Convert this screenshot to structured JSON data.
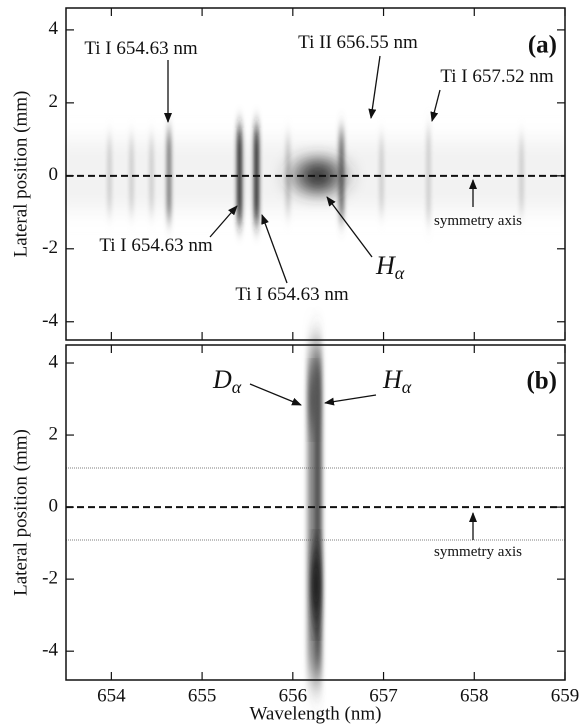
{
  "chart_data": [
    {
      "type": "image",
      "panel_label": "(a)",
      "ylabel": "Lateral position (mm)",
      "xlim": [
        653.5,
        659.0
      ],
      "ylim": [
        -4.5,
        4.6
      ],
      "yticks": [
        -4,
        -2,
        0,
        2,
        4
      ],
      "annotations": [
        {
          "text": "Ti I 654.63 nm"
        },
        {
          "text": "Ti II 656.55 nm"
        },
        {
          "text": "Ti I 657.52 nm"
        },
        {
          "text": "Ti I 654.63 nm"
        },
        {
          "text": "Ti I 654.63 nm"
        },
        {
          "text": "H",
          "subscript": "α"
        },
        {
          "text": "symmetry axis"
        }
      ]
    },
    {
      "type": "image",
      "panel_label": "(b)",
      "ylabel": "Lateral position (mm)",
      "xlabel": "Wavelength (nm)",
      "xlim": [
        653.5,
        659.0
      ],
      "ylim": [
        -4.8,
        4.5
      ],
      "xticks": [
        654,
        655,
        656,
        657,
        658,
        659
      ],
      "yticks": [
        -4,
        -2,
        0,
        2,
        4
      ],
      "annotations": [
        {
          "text": "D",
          "subscript": "α"
        },
        {
          "text": "H",
          "subscript": "α"
        },
        {
          "text": "symmetry axis"
        }
      ]
    }
  ]
}
